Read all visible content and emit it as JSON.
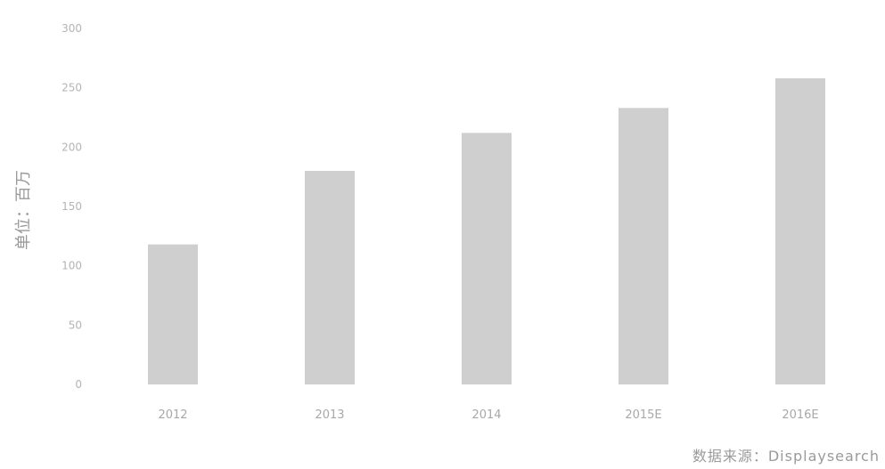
{
  "chart_data": {
    "type": "bar",
    "categories": [
      "2012",
      "2013",
      "2014",
      "2015E",
      "2016E"
    ],
    "values": [
      118,
      180,
      212,
      233,
      258
    ],
    "ylabel": "单位：百万",
    "yticks": [
      "0",
      "50",
      "100",
      "150",
      "200",
      "250",
      "300"
    ],
    "ylim": [
      0,
      300
    ],
    "grid": false,
    "bar_color": "#cfcfcf"
  },
  "source_text": "数据来源：Displaysearch"
}
